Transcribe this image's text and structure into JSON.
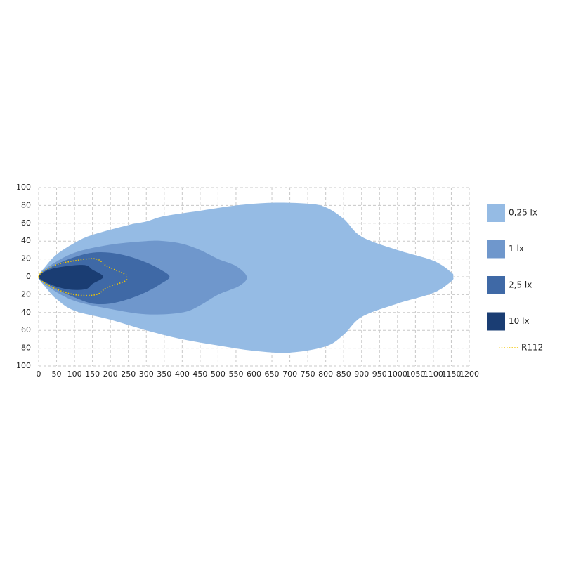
{
  "chart_data": {
    "type": "contour",
    "xlim": [
      0,
      1200
    ],
    "xticks": [
      0,
      50,
      100,
      150,
      200,
      250,
      300,
      350,
      400,
      450,
      500,
      550,
      600,
      650,
      700,
      750,
      800,
      850,
      900,
      950,
      1000,
      1050,
      1100,
      1150,
      1200
    ],
    "ylim": [
      -100,
      100
    ],
    "yticks": [
      {
        "value": -100,
        "label": "100"
      },
      {
        "value": -80,
        "label": "80"
      },
      {
        "value": -60,
        "label": "60"
      },
      {
        "value": -40,
        "label": "40"
      },
      {
        "value": -20,
        "label": "20"
      },
      0,
      20,
      40,
      60,
      80,
      100
    ],
    "grid": true,
    "legend": "right",
    "series": [
      {
        "name": "0,25 lx",
        "type": "area",
        "color": "#95bbe4",
        "x": [
          0,
          20,
          50,
          100,
          150,
          250,
          300,
          350,
          450,
          550,
          650,
          750,
          800,
          850,
          900,
          1000,
          1100,
          1150,
          1155,
          1150,
          1100,
          1000,
          900,
          850,
          800,
          700,
          600,
          500,
          400,
          300,
          200,
          100,
          50,
          20
        ],
        "y": [
          0,
          12,
          25,
          38,
          47,
          58,
          62,
          68,
          74,
          80,
          83,
          82,
          78,
          65,
          45,
          30,
          18,
          5,
          0,
          -5,
          -18,
          -30,
          -45,
          -65,
          -78,
          -85,
          -83,
          -77,
          -70,
          -60,
          -48,
          -38,
          -25,
          -12
        ]
      },
      {
        "name": "1 lx",
        "type": "area",
        "color": "#6f97cc",
        "x": [
          0,
          30,
          100,
          200,
          300,
          350,
          400,
          450,
          500,
          550,
          580,
          560,
          500,
          450,
          400,
          300,
          200,
          100,
          30
        ],
        "y": [
          0,
          12,
          27,
          36,
          40,
          40,
          37,
          30,
          20,
          12,
          0,
          -10,
          -20,
          -32,
          -40,
          -42,
          -36,
          -27,
          -12
        ]
      },
      {
        "name": "2,5 lx",
        "type": "area",
        "color": "#3f69a6",
        "x": [
          0,
          40,
          100,
          150,
          200,
          250,
          300,
          340,
          365,
          340,
          300,
          250,
          200,
          150,
          100,
          40
        ],
        "y": [
          0,
          12,
          22,
          27,
          27,
          23,
          16,
          8,
          0,
          -8,
          -17,
          -25,
          -30,
          -30,
          -23,
          -12
        ]
      },
      {
        "name": "10 lx",
        "type": "area",
        "color": "#1a3d73",
        "x": [
          0,
          30,
          80,
          130,
          150,
          180,
          150,
          130,
          80,
          30
        ],
        "y": [
          0,
          8,
          12,
          13,
          8,
          0,
          -8,
          -14,
          -14,
          -8
        ]
      },
      {
        "name": "R112",
        "type": "dotted-line",
        "color": "#f2c500",
        "x": [
          0,
          40,
          100,
          160,
          190,
          240,
          245,
          240,
          190,
          160,
          100,
          40
        ],
        "y": [
          0,
          12,
          18,
          20,
          12,
          3,
          0,
          -5,
          -12,
          -20,
          -20,
          -12
        ]
      }
    ]
  }
}
